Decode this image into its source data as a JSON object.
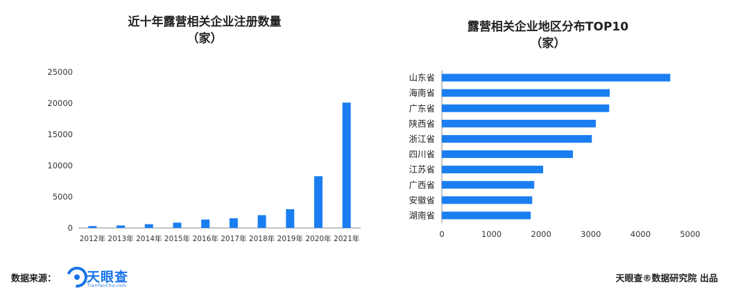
{
  "footer": {
    "source_label": "数据来源：",
    "logo_text": "天眼查",
    "logo_sub": "TianYanCha.com",
    "credit": "天眼查®数据研究院 出品"
  },
  "colors": {
    "bar": "#1a7ef0",
    "axis": "#888888"
  },
  "chart_data": [
    {
      "type": "bar",
      "orientation": "vertical",
      "title": "近十年露营相关企业注册数量",
      "subtitle": "（家）",
      "categories": [
        "2012年",
        "2013年",
        "2014年",
        "2015年",
        "2016年",
        "2017年",
        "2018年",
        "2019年",
        "2020年",
        "2021年"
      ],
      "values": [
        300,
        400,
        600,
        850,
        1350,
        1550,
        2050,
        3000,
        8300,
        20100
      ],
      "ylim": [
        0,
        25000
      ],
      "yticks": [
        0,
        5000,
        10000,
        15000,
        20000,
        25000
      ],
      "grid": false,
      "legend": "none"
    },
    {
      "type": "bar",
      "orientation": "horizontal",
      "title": "露营相关企业地区分布TOP10",
      "subtitle": "（家）",
      "categories": [
        "山东省",
        "海南省",
        "广东省",
        "陕西省",
        "浙江省",
        "四川省",
        "江苏省",
        "广西省",
        "安徽省",
        "湖南省"
      ],
      "values": [
        4600,
        3380,
        3370,
        3100,
        3020,
        2640,
        2040,
        1860,
        1820,
        1790
      ],
      "xlim": [
        0,
        5000
      ],
      "xticks": [
        0,
        1000,
        2000,
        3000,
        4000,
        5000
      ],
      "grid": false,
      "legend": "none"
    }
  ]
}
